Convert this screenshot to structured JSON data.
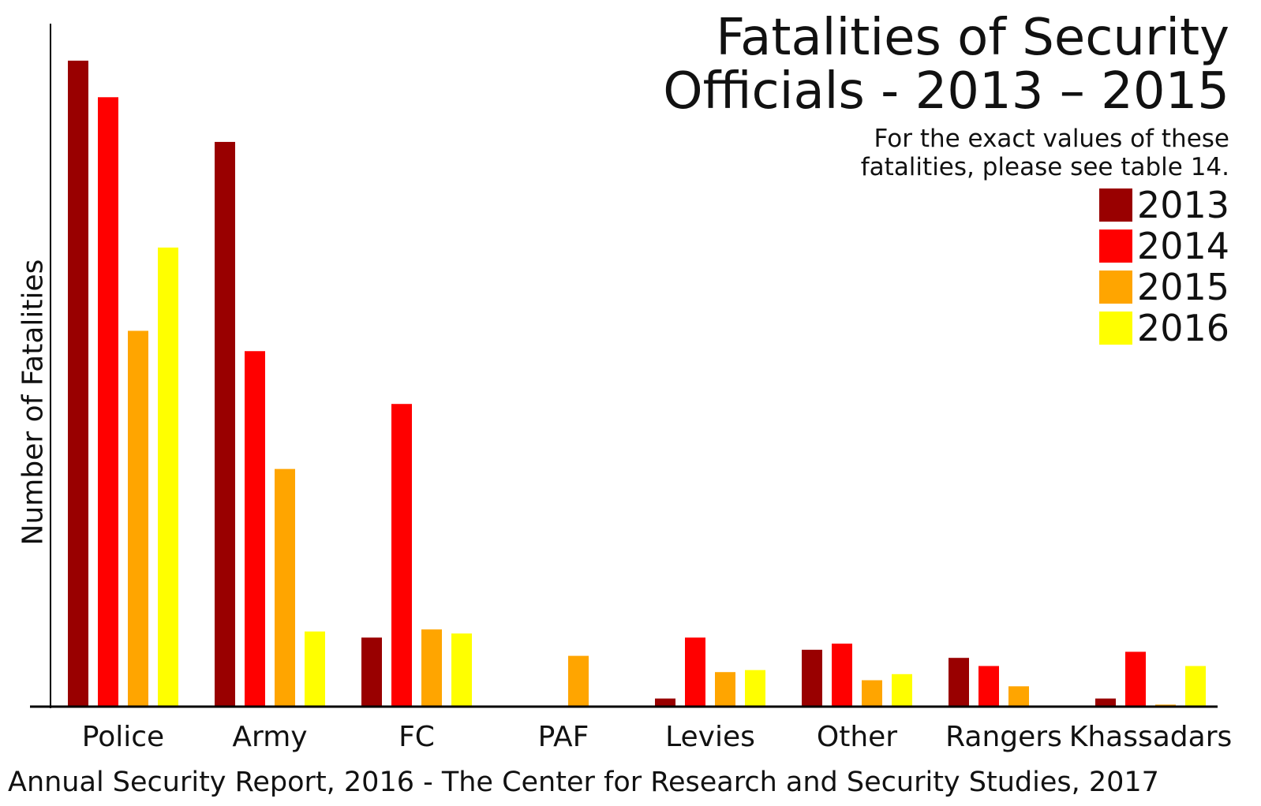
{
  "chart_data": {
    "type": "bar",
    "title": "Fatalities of Security Officials - 2013 – 2015",
    "title_lines": [
      "Fatalities of Security",
      "Officials - 2013 – 2015"
    ],
    "subtitle_lines": [
      "For the exact values of these",
      "fatalities, please see table 14."
    ],
    "xlabel": "",
    "ylabel": "Number of Fatalities",
    "source": "Annual Security Report, 2016 - The Center for Research and Security Studies, 2017",
    "categories": [
      "Police",
      "Army",
      "FC",
      "PAF",
      "Levies",
      "Other",
      "Rangers",
      "Khassadars"
    ],
    "series": [
      {
        "name": "2013",
        "color": "#990000",
        "values": [
          636,
          556,
          68,
          0,
          8,
          56,
          48,
          8
        ]
      },
      {
        "name": "2014",
        "color": "#ff0000",
        "values": [
          600,
          350,
          298,
          0,
          68,
          62,
          40,
          54
        ]
      },
      {
        "name": "2015",
        "color": "#ffa500",
        "values": [
          370,
          234,
          76,
          50,
          34,
          26,
          20,
          2
        ]
      },
      {
        "name": "2016",
        "color": "#ffff00",
        "values": [
          452,
          74,
          72,
          0,
          36,
          32,
          0,
          40
        ]
      }
    ],
    "ylim": [
      0,
      660
    ],
    "grid": false,
    "y_ticks_shown": false,
    "legend_position": "top-right"
  }
}
